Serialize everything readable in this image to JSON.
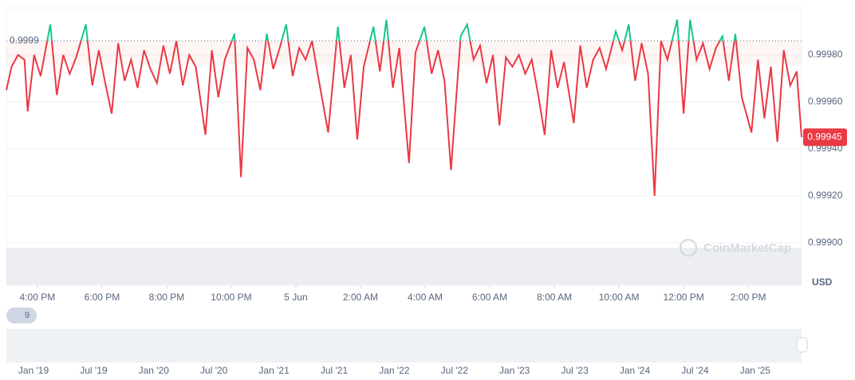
{
  "chart_data": {
    "type": "line",
    "series": [
      {
        "name": "Price",
        "color": "#ea3943",
        "color_above": "#16c784",
        "x": [
          15.04,
          15.2,
          15.4,
          15.6,
          15.7,
          15.9,
          16.1,
          16.4,
          16.6,
          16.8,
          17.0,
          17.2,
          17.5,
          17.7,
          17.9,
          18.1,
          18.3,
          18.5,
          18.7,
          18.9,
          19.1,
          19.3,
          19.5,
          19.7,
          19.9,
          20.1,
          20.3,
          20.5,
          20.7,
          20.9,
          21.2,
          21.4,
          21.6,
          21.8,
          22.1,
          22.3,
          22.5,
          22.7,
          22.9,
          23.1,
          23.3,
          23.5,
          23.7,
          23.9,
          24.1,
          24.3,
          24.5,
          24.7,
          25.0,
          25.3,
          25.5,
          25.7,
          25.9,
          26.1,
          26.4,
          26.6,
          26.8,
          27.0,
          27.2,
          27.5,
          27.7,
          27.98,
          28.2,
          28.4,
          28.6,
          28.8,
          29.1,
          29.3,
          29.5,
          29.7,
          29.9,
          30.1,
          30.3,
          30.5,
          30.7,
          30.9,
          31.1,
          31.3,
          31.5,
          31.7,
          31.9,
          32.1,
          32.3,
          32.6,
          32.8,
          33.0,
          33.2,
          33.4,
          33.6,
          33.9,
          34.1,
          34.3,
          34.5,
          34.7,
          34.9,
          35.1,
          35.3,
          35.5,
          35.8,
          36.0,
          36.2,
          36.4,
          36.6,
          36.8,
          37.0,
          37.2,
          37.4,
          37.6,
          37.8,
          38.1,
          38.3,
          38.5,
          38.7,
          38.9,
          39.1,
          39.3,
          39.5,
          39.65
        ],
        "values": [
          0.99965,
          0.99975,
          0.9998,
          0.99978,
          0.99956,
          0.9998,
          0.99971,
          0.99993,
          0.99963,
          0.9998,
          0.99972,
          0.99979,
          0.99993,
          0.99967,
          0.99982,
          0.99968,
          0.99955,
          0.99985,
          0.99969,
          0.99978,
          0.99966,
          0.99982,
          0.99974,
          0.99968,
          0.99984,
          0.99972,
          0.99986,
          0.99967,
          0.9998,
          0.99975,
          0.99946,
          0.99982,
          0.99962,
          0.99978,
          0.99989,
          0.99928,
          0.99983,
          0.99978,
          0.99965,
          0.99989,
          0.99974,
          0.99983,
          0.99993,
          0.99971,
          0.99983,
          0.99978,
          0.99986,
          0.9997,
          0.99947,
          0.99992,
          0.99966,
          0.9998,
          0.99944,
          0.99975,
          0.99992,
          0.99973,
          0.99995,
          0.99966,
          0.99983,
          0.99934,
          0.99981,
          0.99992,
          0.99972,
          0.99982,
          0.99969,
          0.99931,
          0.99988,
          0.99993,
          0.99978,
          0.99984,
          0.99968,
          0.9998,
          0.9995,
          0.99979,
          0.99975,
          0.9998,
          0.99972,
          0.99978,
          0.99963,
          0.99946,
          0.99982,
          0.99966,
          0.99977,
          0.99951,
          0.99984,
          0.99966,
          0.99978,
          0.99983,
          0.99974,
          0.9999,
          0.99982,
          0.99993,
          0.99969,
          0.99985,
          0.99972,
          0.9992,
          0.99986,
          0.99978,
          0.99995,
          0.99955,
          0.99995,
          0.99978,
          0.99985,
          0.99974,
          0.99983,
          0.99988,
          0.99969,
          0.99989,
          0.99962,
          0.99947,
          0.99978,
          0.99953,
          0.99975,
          0.99943,
          0.99982,
          0.99967,
          0.99973,
          0.99945
        ]
      }
    ],
    "reference": {
      "value": 0.99986,
      "label": "0.9999"
    },
    "current": {
      "value": 0.99945,
      "label": "0.99945"
    },
    "xlim": [
      15.04,
      39.65
    ],
    "xticks": [
      {
        "value": 16,
        "label": "4:00 PM"
      },
      {
        "value": 18,
        "label": "6:00 PM"
      },
      {
        "value": 20,
        "label": "8:00 PM"
      },
      {
        "value": 22,
        "label": "10:00 PM"
      },
      {
        "value": 24,
        "label": "5 Jun"
      },
      {
        "value": 26,
        "label": "2:00 AM"
      },
      {
        "value": 28,
        "label": "4:00 AM"
      },
      {
        "value": 30,
        "label": "6:00 AM"
      },
      {
        "value": 32,
        "label": "8:00 AM"
      },
      {
        "value": 34,
        "label": "10:00 AM"
      },
      {
        "value": 36,
        "label": "12:00 PM"
      },
      {
        "value": 38,
        "label": "2:00 PM"
      }
    ],
    "ylim": [
      0.99882,
      1.0
    ],
    "yticks": [
      {
        "value": 0.999,
        "label": "0.99900"
      },
      {
        "value": 0.9992,
        "label": "0.99920"
      },
      {
        "value": 0.9994,
        "label": "0.99940"
      },
      {
        "value": 0.9996,
        "label": "0.99960"
      },
      {
        "value": 0.9998,
        "label": "0.99980"
      }
    ],
    "y_unit": "USD",
    "grid": true,
    "watermark": "CoinMarketCap",
    "badge": "9",
    "navigator_labels": [
      "Jan '19",
      "Jul '19",
      "Jan '20",
      "Jul '20",
      "Jan '21",
      "Jul '21",
      "Jan '22",
      "Jul '22",
      "Jan '23",
      "Jul '23",
      "Jan '24",
      "Jul '24",
      "Jan '25"
    ]
  }
}
